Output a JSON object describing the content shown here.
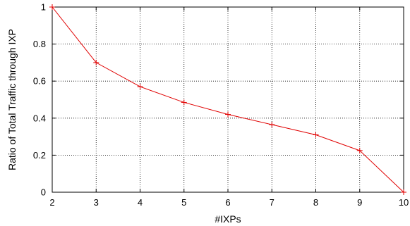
{
  "chart_data": {
    "type": "line",
    "xlabel": "#IXPs",
    "ylabel": "Ratio of Total Traffic through IXP",
    "xlim": [
      2,
      10
    ],
    "ylim": [
      0,
      1
    ],
    "x_ticks": [
      2,
      3,
      4,
      5,
      6,
      7,
      8,
      9,
      10
    ],
    "y_ticks": [
      0,
      0.2,
      0.4,
      0.6,
      0.8,
      1
    ],
    "y_tick_labels": [
      "0",
      "0.2",
      "0.4",
      "0.6",
      "0.8",
      "1"
    ],
    "grid": true,
    "marker": "plus",
    "series": [
      {
        "color": "#e00000",
        "x": [
          2,
          3,
          4,
          5,
          6,
          7,
          8,
          9,
          10
        ],
        "y": [
          1.0,
          0.7,
          0.57,
          0.485,
          0.42,
          0.365,
          0.31,
          0.225,
          0.0
        ]
      }
    ]
  }
}
